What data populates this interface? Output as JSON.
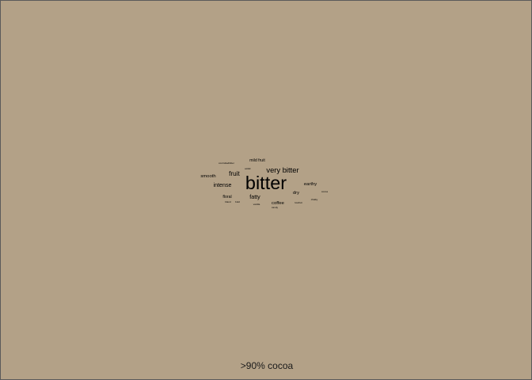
{
  "colors": {
    "background": "#b3a187",
    "text": "#000000"
  },
  "caption": ">90% cocoa",
  "chart_data": {
    "type": "wordcloud",
    "words": [
      {
        "text": "bitter",
        "weight": 10
      },
      {
        "text": "very bitter",
        "weight": 4
      },
      {
        "text": "fruit",
        "weight": 3.5
      },
      {
        "text": "intense",
        "weight": 3
      },
      {
        "text": "fatty",
        "weight": 3
      },
      {
        "text": "smooth",
        "weight": 2.5
      },
      {
        "text": "earthy",
        "weight": 2.5
      },
      {
        "text": "dry",
        "weight": 2.5
      },
      {
        "text": "coffee",
        "weight": 2.5
      },
      {
        "text": "mild fruit",
        "weight": 2.2
      },
      {
        "text": "floral",
        "weight": 2.2
      },
      {
        "text": "bland",
        "weight": 0.6
      },
      {
        "text": "bold",
        "weight": 0.6
      },
      {
        "text": "cocoa",
        "weight": 0.6
      },
      {
        "text": "chalky",
        "weight": 0.6
      },
      {
        "text": "lowfruit",
        "weight": 0.5
      },
      {
        "text": "vanilla",
        "weight": 0.5
      },
      {
        "text": "acidic",
        "weight": 0.5
      },
      {
        "text": "candy",
        "weight": 0.5
      },
      {
        "text": "controlledbitter",
        "weight": 0.5
      }
    ]
  }
}
